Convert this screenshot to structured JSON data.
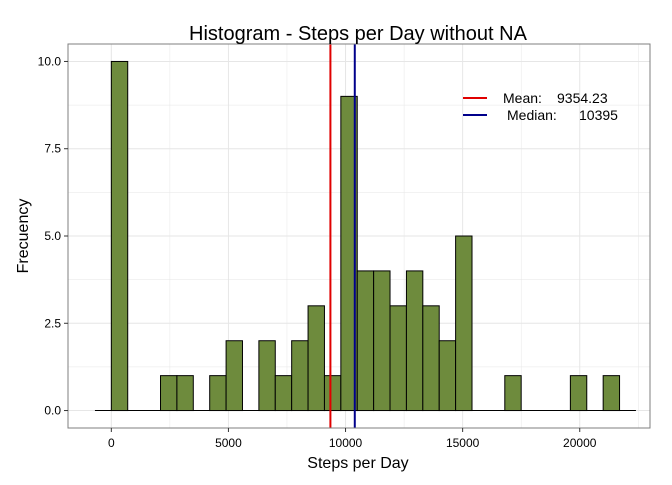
{
  "chart_data": {
    "type": "bar",
    "title": "Histogram - Steps per Day without NA",
    "xlabel": "Steps per Day",
    "ylabel": "Frecuency",
    "xlim": [
      -1850,
      23000
    ],
    "ylim": [
      -0.5,
      10.5
    ],
    "x_ticks": [
      0,
      5000,
      10000,
      15000,
      20000
    ],
    "x_tick_labels": [
      "0",
      "5000",
      "10000",
      "15000",
      "20000"
    ],
    "y_ticks": [
      0,
      2.5,
      5,
      7.5,
      10
    ],
    "y_tick_labels": [
      "0.0",
      "2.5",
      "5.0",
      "7.5",
      "10.0"
    ],
    "grid": true,
    "series": [
      {
        "bins": [
          {
            "start": 0,
            "end": 700,
            "count": 10
          },
          {
            "start": 2100,
            "end": 2800,
            "count": 1
          },
          {
            "start": 2800,
            "end": 3500,
            "count": 1
          },
          {
            "start": 4200,
            "end": 4900,
            "count": 1
          },
          {
            "start": 4900,
            "end": 5600,
            "count": 2
          },
          {
            "start": 6300,
            "end": 7000,
            "count": 2
          },
          {
            "start": 7000,
            "end": 7700,
            "count": 1
          },
          {
            "start": 7700,
            "end": 8400,
            "count": 2
          },
          {
            "start": 8400,
            "end": 9100,
            "count": 3
          },
          {
            "start": 9100,
            "end": 9800,
            "count": 1
          },
          {
            "start": 9800,
            "end": 10500,
            "count": 9
          },
          {
            "start": 10500,
            "end": 11200,
            "count": 4
          },
          {
            "start": 11200,
            "end": 11900,
            "count": 4
          },
          {
            "start": 11900,
            "end": 12600,
            "count": 3
          },
          {
            "start": 12600,
            "end": 13300,
            "count": 4
          },
          {
            "start": 13300,
            "end": 14000,
            "count": 3
          },
          {
            "start": 14000,
            "end": 14700,
            "count": 2
          },
          {
            "start": 14700,
            "end": 15400,
            "count": 5
          },
          {
            "start": 16800,
            "end": 17500,
            "count": 1
          },
          {
            "start": 19600,
            "end": 20300,
            "count": 1
          },
          {
            "start": 21000,
            "end": 21700,
            "count": 1
          }
        ],
        "baseline_extent": [
          -700,
          22400
        ],
        "color": "#6e8b3d",
        "stroke": "#000000"
      }
    ],
    "reference_lines": [
      {
        "name": "Mean",
        "value": 9354.23,
        "color": "#e00000"
      },
      {
        "name": "Median",
        "value": 10395,
        "color": "#00008b"
      }
    ],
    "legend": {
      "placement": "top-right",
      "entries": [
        {
          "label": "Mean:",
          "value": "9354.23",
          "color": "#e00000"
        },
        {
          "label": "Median:",
          "value": "10395",
          "color": "#00008b"
        }
      ]
    },
    "colors": {
      "bar_fill": "#6e8b3d",
      "mean": "#e00000",
      "median": "#00008b",
      "grid": "#e6e6e6",
      "panel_border": "#7f7f7f"
    }
  }
}
